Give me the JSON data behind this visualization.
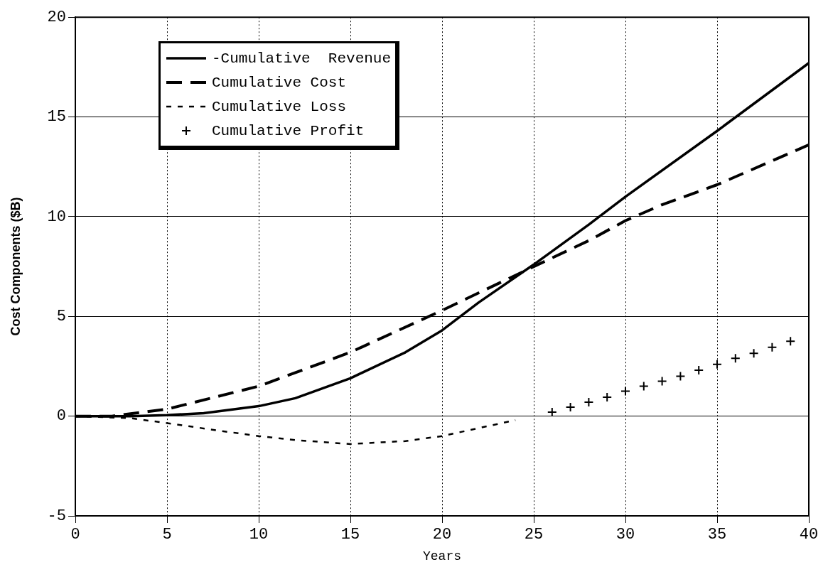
{
  "chart_data": {
    "type": "line",
    "xlabel": "Years",
    "ylabel": "Cost Components ($B)",
    "xlim": [
      0,
      40
    ],
    "xticks": [
      0,
      5,
      10,
      15,
      20,
      25,
      30,
      35,
      40
    ],
    "ylim": [
      -5,
      20
    ],
    "yticks": [
      -5,
      0,
      5,
      10,
      15,
      20
    ],
    "grid": true,
    "legend": "top left",
    "series": [
      {
        "name": "-Cumulative  Revenue",
        "type": "line",
        "line_style": "solid",
        "marker": "none",
        "color": "#000000",
        "x": [
          0,
          3,
          5,
          7,
          10,
          12,
          15,
          18,
          20,
          22,
          25,
          28,
          30,
          35,
          40
        ],
        "values": [
          0,
          0,
          0.05,
          0.15,
          0.5,
          0.9,
          1.9,
          3.2,
          4.3,
          5.7,
          7.6,
          9.6,
          11.0,
          14.3,
          17.7
        ]
      },
      {
        "name": "Cumulative Cost",
        "type": "line",
        "line_style": "dashed",
        "marker": "none",
        "color": "#000000",
        "x": [
          0,
          2,
          5,
          10,
          15,
          20,
          25,
          28,
          30,
          32,
          35,
          40
        ],
        "values": [
          0,
          0,
          0.35,
          1.5,
          3.2,
          5.3,
          7.5,
          8.8,
          9.8,
          10.6,
          11.6,
          13.6
        ]
      },
      {
        "name": "Cumulative Loss",
        "type": "line",
        "line_style": "dotted",
        "marker": "none",
        "color": "#000000",
        "x": [
          0,
          3,
          5,
          8,
          10,
          12,
          15,
          18,
          20,
          22,
          24
        ],
        "values": [
          0,
          -0.1,
          -0.35,
          -0.75,
          -1.0,
          -1.2,
          -1.4,
          -1.25,
          -1.0,
          -0.6,
          -0.2
        ]
      },
      {
        "name": "Cumulative Profit",
        "type": "scatter",
        "marker": "cross",
        "color": "#000000",
        "x": [
          26,
          27,
          28,
          29,
          30,
          31,
          32,
          33,
          34,
          35,
          36,
          37,
          38,
          39
        ],
        "values": [
          0.2,
          0.45,
          0.7,
          0.95,
          1.25,
          1.5,
          1.75,
          2.0,
          2.3,
          2.6,
          2.9,
          3.15,
          3.45,
          3.75
        ]
      }
    ]
  }
}
